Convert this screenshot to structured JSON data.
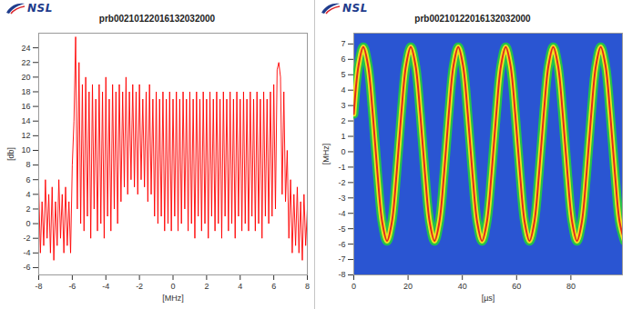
{
  "chart_data": [
    {
      "type": "line",
      "logo": "NSL",
      "title": "prb00210122016132032000",
      "xlabel": "[MHz]",
      "ylabel": "[db]",
      "color": "#ff0000",
      "xlim": [
        -8,
        8
      ],
      "xticks": [
        -8,
        -6,
        -4,
        -2,
        0,
        2,
        4,
        6,
        8
      ],
      "ylim": [
        -7,
        26
      ],
      "yticks": [
        -6,
        -4,
        -2,
        0,
        2,
        4,
        6,
        8,
        10,
        12,
        14,
        16,
        18,
        20,
        22,
        24
      ],
      "x": [
        -8.0,
        -7.9,
        -7.8,
        -7.7,
        -7.6,
        -7.5,
        -7.4,
        -7.3,
        -7.2,
        -7.1,
        -7.0,
        -6.9,
        -6.8,
        -6.7,
        -6.6,
        -6.5,
        -6.4,
        -6.3,
        -6.2,
        -6.1,
        -6.0,
        -5.9,
        -5.8,
        -5.7,
        -5.6,
        -5.5,
        -5.4,
        -5.3,
        -5.2,
        -5.1,
        -5.0,
        -4.9,
        -4.8,
        -4.7,
        -4.6,
        -4.5,
        -4.4,
        -4.3,
        -4.2,
        -4.1,
        -4.0,
        -3.9,
        -3.8,
        -3.7,
        -3.6,
        -3.5,
        -3.4,
        -3.3,
        -3.2,
        -3.1,
        -3.0,
        -2.9,
        -2.8,
        -2.7,
        -2.6,
        -2.5,
        -2.4,
        -2.3,
        -2.2,
        -2.1,
        -2.0,
        -1.9,
        -1.8,
        -1.7,
        -1.6,
        -1.5,
        -1.4,
        -1.3,
        -1.2,
        -1.1,
        -1.0,
        -0.9,
        -0.8,
        -0.7,
        -0.6,
        -0.5,
        -0.4,
        -0.3,
        -0.2,
        -0.1,
        0.0,
        0.1,
        0.2,
        0.3,
        0.4,
        0.5,
        0.6,
        0.7,
        0.8,
        0.9,
        1.0,
        1.1,
        1.2,
        1.3,
        1.4,
        1.5,
        1.6,
        1.7,
        1.8,
        1.9,
        2.0,
        2.1,
        2.2,
        2.3,
        2.4,
        2.5,
        2.6,
        2.7,
        2.8,
        2.9,
        3.0,
        3.1,
        3.2,
        3.3,
        3.4,
        3.5,
        3.6,
        3.7,
        3.8,
        3.9,
        4.0,
        4.1,
        4.2,
        4.3,
        4.4,
        4.5,
        4.6,
        4.7,
        4.8,
        4.9,
        5.0,
        5.1,
        5.2,
        5.3,
        5.4,
        5.5,
        5.6,
        5.7,
        5.8,
        5.9,
        6.0,
        6.1,
        6.2,
        6.3,
        6.4,
        6.5,
        6.6,
        6.7,
        6.8,
        6.9,
        7.0,
        7.1,
        7.2,
        7.3,
        7.4,
        7.5,
        7.6,
        7.7,
        7.8,
        7.9,
        8.0
      ],
      "values": [
        5,
        -4,
        3,
        -3,
        6,
        -2,
        4,
        -4,
        5,
        -5,
        3,
        -3,
        6,
        -2,
        4,
        -4,
        5,
        -3,
        3,
        -4,
        8,
        14,
        25.5,
        2,
        22,
        0,
        19,
        -1,
        20,
        1,
        18,
        -2,
        19,
        2,
        17,
        -1,
        19,
        0,
        18,
        -2,
        20,
        1,
        17,
        -1,
        19,
        2,
        18,
        0,
        19,
        3,
        18,
        5,
        20,
        4,
        18,
        6,
        19,
        5,
        18,
        4,
        19,
        6,
        17,
        5,
        18,
        3,
        19,
        4,
        17,
        1,
        18,
        0,
        17,
        1,
        18,
        -1,
        17,
        0,
        18,
        -1,
        17,
        1,
        18,
        -1,
        17,
        0,
        18,
        2,
        17,
        -1,
        18,
        0,
        17,
        -2,
        18,
        1,
        17,
        -1,
        18,
        0,
        17,
        -2,
        18,
        1,
        17,
        -1,
        18,
        0,
        17,
        -2,
        18,
        1,
        17,
        -1,
        18,
        0,
        17,
        -2,
        18,
        1,
        17,
        -1,
        18,
        0,
        17,
        -1,
        18,
        1,
        17,
        -1,
        18,
        0,
        17,
        -2,
        18,
        1,
        17,
        0,
        18,
        1,
        19,
        2,
        21,
        22,
        20,
        4,
        18,
        3,
        10,
        -2,
        6,
        -4,
        4,
        -3,
        5,
        -4,
        3,
        -5,
        4,
        -3,
        2
      ]
    },
    {
      "type": "spectrogram",
      "logo": "NSL",
      "title": "prb00210122016132032000",
      "xlabel": "[µs]",
      "ylabel": "[MHz]",
      "xlim": [
        0,
        99
      ],
      "xticks": [
        0,
        20,
        40,
        60,
        80
      ],
      "ylim": [
        -8,
        7.7
      ],
      "yticks": [
        -8,
        -7,
        -6,
        -5,
        -4,
        -3,
        -2,
        -1,
        0,
        1,
        2,
        3,
        4,
        5,
        6,
        7
      ],
      "x": [
        0,
        1.75,
        3.5,
        5.25,
        7,
        8.75,
        10.5,
        12.25,
        14,
        15.75,
        17.5,
        19.25,
        21,
        22.75,
        24.5,
        26.25,
        28,
        29.75,
        31.5,
        33.25,
        35,
        36.75,
        38.5,
        40.25,
        42,
        43.75,
        45.5,
        47.25,
        49,
        50.75,
        52.5,
        54.25,
        56,
        57.75,
        59.5,
        61.25,
        63,
        64.75,
        66.5,
        68.25,
        70,
        71.75,
        73.5,
        75.25,
        77,
        78.75,
        80.5,
        82.25,
        84,
        85.75,
        87.5,
        89.25,
        91,
        92.75,
        94.5,
        96.25,
        98,
        99.75
      ],
      "values": [
        2.45,
        5.6,
        6.8,
        5.6,
        2.45,
        -1.45,
        -4.6,
        -5.8,
        -4.6,
        -1.45,
        2.45,
        5.6,
        6.8,
        5.6,
        2.45,
        -1.45,
        -4.6,
        -5.8,
        -4.6,
        -1.45,
        2.45,
        5.6,
        6.8,
        5.6,
        2.45,
        -1.45,
        -4.6,
        -5.8,
        -4.6,
        -1.45,
        2.45,
        5.6,
        6.8,
        5.6,
        2.45,
        -1.45,
        -4.6,
        -5.8,
        -4.6,
        -1.45,
        2.45,
        5.6,
        6.8,
        5.6,
        2.45,
        -1.45,
        -4.6,
        -5.8,
        -4.6,
        -1.45,
        2.45,
        5.6,
        6.8,
        5.6,
        2.45,
        -1.45,
        -4.6,
        -5.8
      ]
    }
  ]
}
